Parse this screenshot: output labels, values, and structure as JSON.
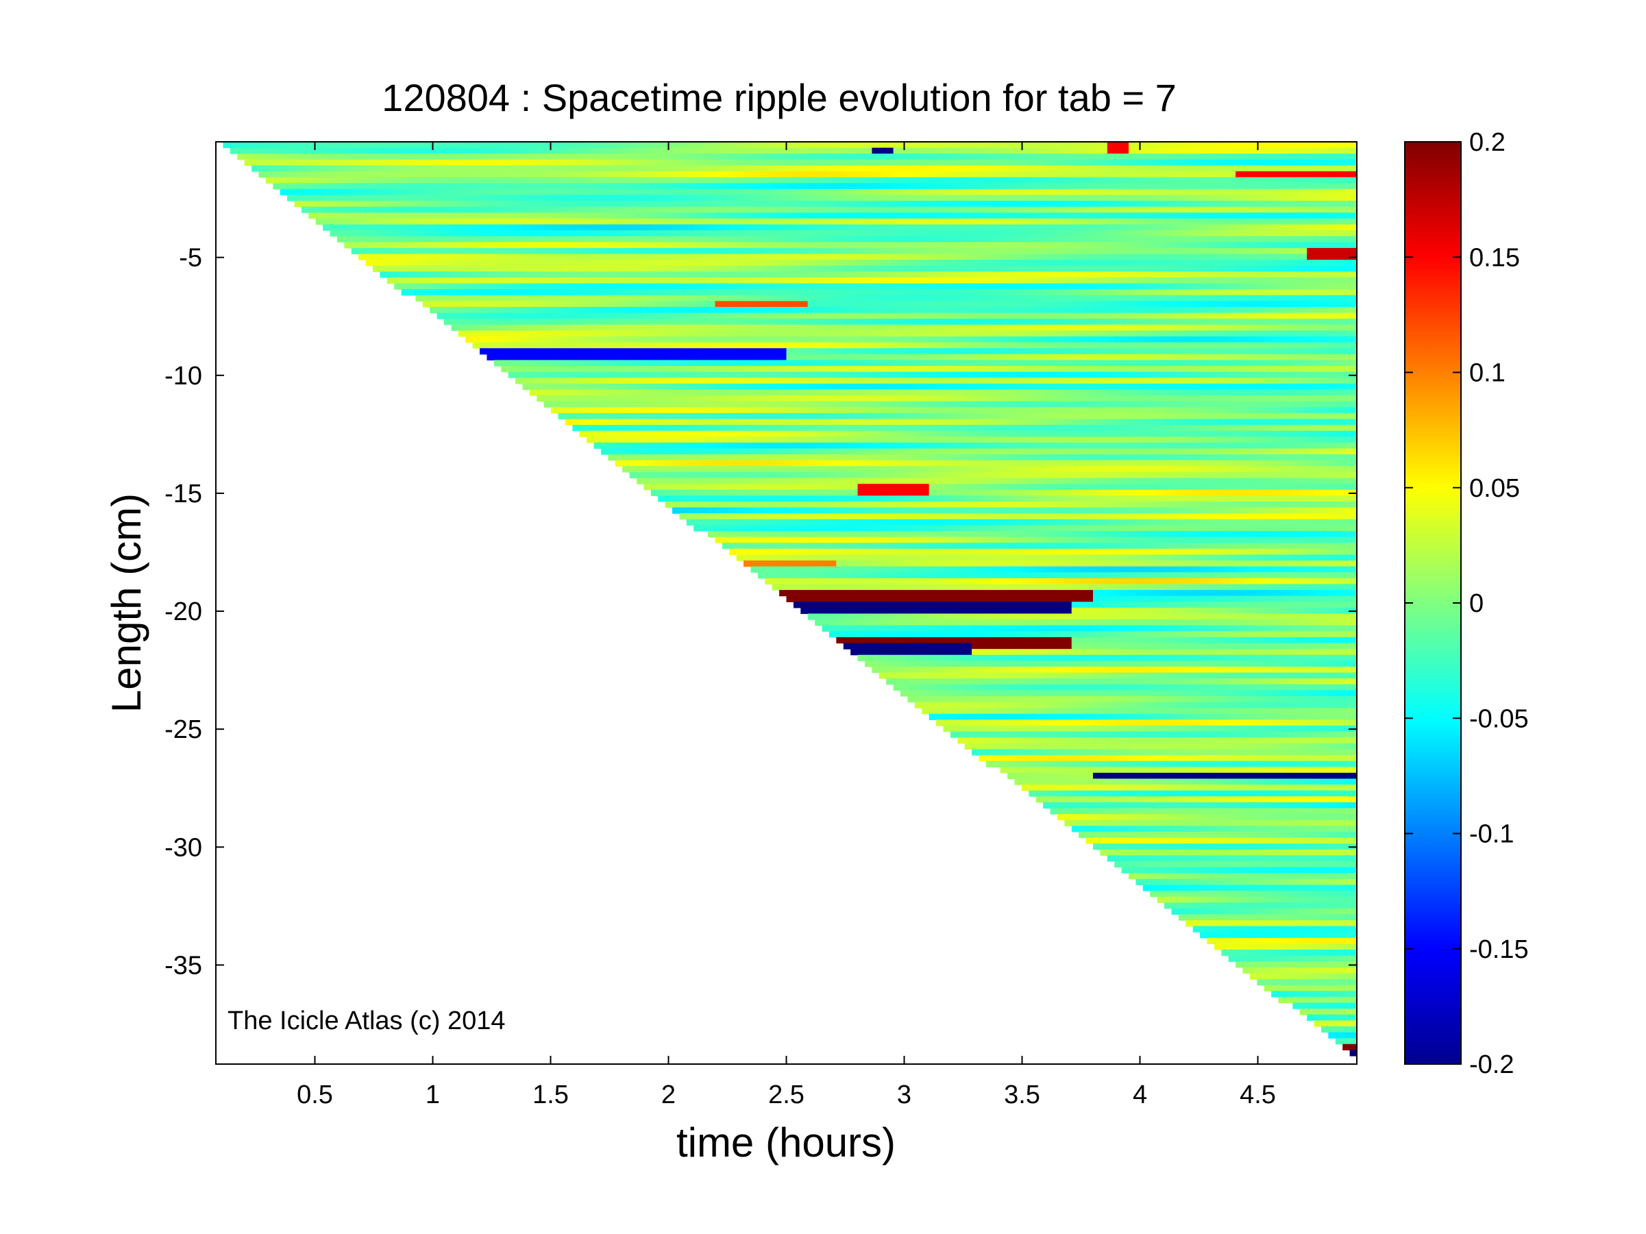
{
  "chart_data": {
    "type": "heatmap",
    "title": "120804 : Spacetime ripple evolution for tab = 7",
    "xlabel": "time (hours)",
    "ylabel": "Length (cm)",
    "xlim": [
      0.08,
      4.92
    ],
    "ylim": [
      -39.2,
      -0.1
    ],
    "xticks": [
      0.5,
      1,
      1.5,
      2,
      2.5,
      3,
      3.5,
      4,
      4.5
    ],
    "yticks": [
      -5,
      -10,
      -15,
      -20,
      -25,
      -30,
      -35
    ],
    "colorbar": {
      "colormap": "jet",
      "clim": [
        -0.2,
        0.2
      ],
      "ticks": [
        0.2,
        0.15,
        0.1,
        0.05,
        0,
        -0.05,
        -0.1,
        -0.15,
        -0.2
      ]
    },
    "domain_edge": "icicle tip grows linearly from about -0.3 cm at t = 0.1 h to about -39 cm at t = 4.9 h; no data below the tip",
    "features": [
      {
        "t_start": 2.45,
        "t_end": 3.8,
        "length": -19.4,
        "value": 0.2
      },
      {
        "t_start": 2.5,
        "t_end": 3.7,
        "length": -19.8,
        "value": -0.2
      },
      {
        "t_start": 2.55,
        "t_end": 3.7,
        "length": -21.4,
        "value": 0.2
      },
      {
        "t_start": 2.6,
        "t_end": 3.3,
        "length": -21.6,
        "value": -0.2
      },
      {
        "t_start": 2.3,
        "t_end": 2.7,
        "length": -18.0,
        "value": 0.1
      },
      {
        "t_start": 2.8,
        "t_end": 3.1,
        "length": -14.9,
        "value": 0.15
      },
      {
        "t_start": 1.2,
        "t_end": 2.5,
        "length": -9.1,
        "value": -0.15
      },
      {
        "t_start": 2.2,
        "t_end": 2.6,
        "length": -7.0,
        "value": 0.12
      },
      {
        "t_start": 4.7,
        "t_end": 4.92,
        "length": -4.9,
        "value": 0.17
      },
      {
        "t_start": 4.4,
        "t_end": 4.92,
        "length": -1.5,
        "value": 0.15
      },
      {
        "t_start": 4.8,
        "t_end": 4.92,
        "length": -38.6,
        "value": 0.2
      },
      {
        "t_start": 4.85,
        "t_end": 4.92,
        "length": -38.9,
        "value": -0.2
      },
      {
        "t_start": 2.85,
        "t_end": 2.95,
        "length": -0.5,
        "value": -0.2
      },
      {
        "t_start": 3.85,
        "t_end": 3.95,
        "length": -0.4,
        "value": 0.15
      },
      {
        "t_start": 3.8,
        "t_end": 4.92,
        "length": -27.0,
        "value": -0.2
      }
    ]
  },
  "watermark": "The Icicle Atlas (c) 2014"
}
